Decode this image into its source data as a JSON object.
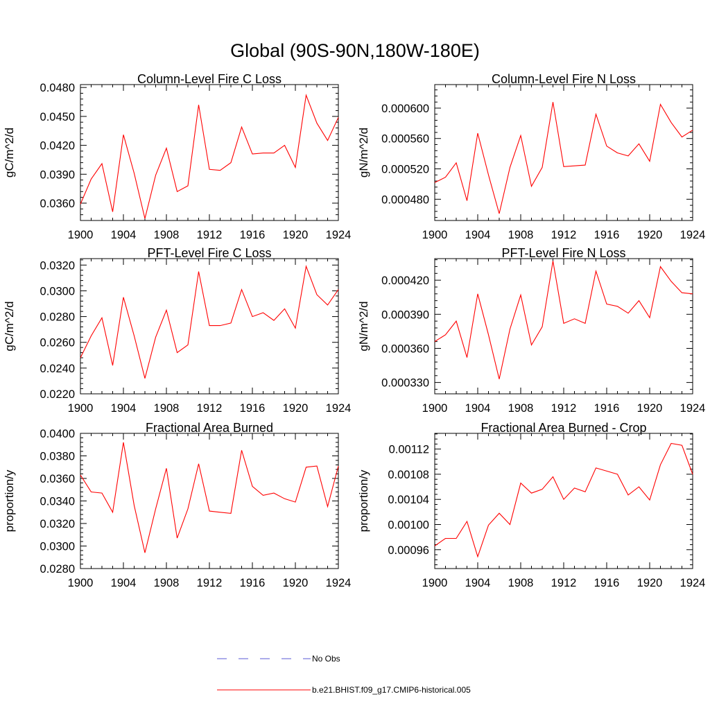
{
  "title": "Global (90S-90N,180W-180E)",
  "legend": {
    "placement": "bottom-center",
    "entries": [
      {
        "label": "No Obs",
        "color": "#5a5ad6",
        "style": "dashed"
      },
      {
        "label": "b.e21.BHIST.f09_g17.CMIP6-historical.005",
        "color": "#ff0000",
        "style": "solid"
      }
    ]
  },
  "chart_data": [
    {
      "type": "line",
      "title": "Column-Level Fire C Loss",
      "ylabel": "gC/m^2/d",
      "xlim": [
        1900,
        1924
      ],
      "xticks": [
        1900,
        1904,
        1908,
        1912,
        1916,
        1920,
        1924
      ],
      "xtick_labels": [
        "1900",
        "1904",
        "1908",
        "1912",
        "1916",
        "1920",
        "1924"
      ],
      "ylim": [
        0.0342,
        0.0483
      ],
      "yticks": [
        0.036,
        0.039,
        0.042,
        0.045,
        0.048
      ],
      "ytick_labels": [
        "0.0360",
        "0.0390",
        "0.0420",
        "0.0450",
        "0.0480"
      ],
      "grid": false,
      "series": [
        {
          "name": "b.e21.BHIST.f09_g17.CMIP6-historical.005",
          "color": "#ff0000",
          "x": [
            1900,
            1901,
            1902,
            1903,
            1904,
            1905,
            1906,
            1907,
            1908,
            1909,
            1910,
            1911,
            1912,
            1913,
            1914,
            1915,
            1916,
            1917,
            1918,
            1919,
            1920,
            1921,
            1922,
            1923,
            1924
          ],
          "values": [
            0.0359,
            0.0385,
            0.0401,
            0.0351,
            0.0431,
            0.0391,
            0.0344,
            0.0389,
            0.0417,
            0.0372,
            0.0378,
            0.0462,
            0.0395,
            0.0394,
            0.0402,
            0.0439,
            0.0411,
            0.0412,
            0.0412,
            0.042,
            0.0397,
            0.0472,
            0.0443,
            0.0425,
            0.0449
          ]
        }
      ]
    },
    {
      "type": "line",
      "title": "Column-Level Fire N Loss",
      "ylabel": "gN/m^2/d",
      "xlim": [
        1900,
        1924
      ],
      "xticks": [
        1900,
        1904,
        1908,
        1912,
        1916,
        1920,
        1924
      ],
      "xtick_labels": [
        "1900",
        "1904",
        "1908",
        "1912",
        "1916",
        "1920",
        "1924"
      ],
      "ylim": [
        0.000452,
        0.000631
      ],
      "yticks": [
        0.00048,
        0.00052,
        0.00056,
        0.0006
      ],
      "ytick_labels": [
        "0.000480",
        "0.000520",
        "0.000560",
        "0.000600"
      ],
      "grid": false,
      "series": [
        {
          "name": "b.e21.BHIST.f09_g17.CMIP6-historical.005",
          "color": "#ff0000",
          "x": [
            1900,
            1901,
            1902,
            1903,
            1904,
            1905,
            1906,
            1907,
            1908,
            1909,
            1910,
            1911,
            1912,
            1913,
            1914,
            1915,
            1916,
            1917,
            1918,
            1919,
            1920,
            1921,
            1922,
            1923,
            1924
          ],
          "values": [
            0.000502,
            0.000509,
            0.000528,
            0.000478,
            0.000567,
            0.000512,
            0.000461,
            0.000522,
            0.000564,
            0.000497,
            0.000522,
            0.000608,
            0.000523,
            0.000524,
            0.000525,
            0.000592,
            0.00055,
            0.000541,
            0.000537,
            0.000553,
            0.00053,
            0.000605,
            0.000581,
            0.000562,
            0.000571
          ]
        }
      ]
    },
    {
      "type": "line",
      "title": "PFT-Level Fire C Loss",
      "ylabel": "gC/m^2/d",
      "xlim": [
        1900,
        1924
      ],
      "xticks": [
        1900,
        1904,
        1908,
        1912,
        1916,
        1920,
        1924
      ],
      "xtick_labels": [
        "1900",
        "1904",
        "1908",
        "1912",
        "1916",
        "1920",
        "1924"
      ],
      "ylim": [
        0.022,
        0.0325
      ],
      "yticks": [
        0.022,
        0.024,
        0.026,
        0.028,
        0.03,
        0.032
      ],
      "ytick_labels": [
        "0.0220",
        "0.0240",
        "0.0260",
        "0.0280",
        "0.0300",
        "0.0320"
      ],
      "grid": false,
      "series": [
        {
          "name": "b.e21.BHIST.f09_g17.CMIP6-historical.005",
          "color": "#ff0000",
          "x": [
            1900,
            1901,
            1902,
            1903,
            1904,
            1905,
            1906,
            1907,
            1908,
            1909,
            1910,
            1911,
            1912,
            1913,
            1914,
            1915,
            1916,
            1917,
            1918,
            1919,
            1920,
            1921,
            1922,
            1923,
            1924
          ],
          "values": [
            0.0248,
            0.0265,
            0.0279,
            0.0242,
            0.0295,
            0.0265,
            0.0232,
            0.0264,
            0.0285,
            0.0252,
            0.0258,
            0.0315,
            0.0273,
            0.0273,
            0.0275,
            0.0301,
            0.028,
            0.0283,
            0.0277,
            0.0286,
            0.0271,
            0.0319,
            0.0297,
            0.0289,
            0.0301
          ]
        }
      ]
    },
    {
      "type": "line",
      "title": "PFT-Level Fire N Loss",
      "ylabel": "gN/m^2/d",
      "xlim": [
        1900,
        1924
      ],
      "xticks": [
        1900,
        1904,
        1908,
        1912,
        1916,
        1920,
        1924
      ],
      "xtick_labels": [
        "1900",
        "1904",
        "1908",
        "1912",
        "1916",
        "1920",
        "1924"
      ],
      "ylim": [
        0.00032,
        0.000439
      ],
      "yticks": [
        0.00033,
        0.00036,
        0.00039,
        0.00042
      ],
      "ytick_labels": [
        "0.000330",
        "0.000360",
        "0.000390",
        "0.000420"
      ],
      "grid": false,
      "series": [
        {
          "name": "b.e21.BHIST.f09_g17.CMIP6-historical.005",
          "color": "#ff0000",
          "x": [
            1900,
            1901,
            1902,
            1903,
            1904,
            1905,
            1906,
            1907,
            1908,
            1909,
            1910,
            1911,
            1912,
            1913,
            1914,
            1915,
            1916,
            1917,
            1918,
            1919,
            1920,
            1921,
            1922,
            1923,
            1924
          ],
          "values": [
            0.000366,
            0.000372,
            0.000384,
            0.000352,
            0.000408,
            0.000372,
            0.000333,
            0.000377,
            0.000407,
            0.000363,
            0.000379,
            0.000437,
            0.000382,
            0.000386,
            0.000382,
            0.000428,
            0.000399,
            0.000397,
            0.000391,
            0.000402,
            0.000387,
            0.000432,
            0.000419,
            0.000409,
            0.000408
          ]
        }
      ]
    },
    {
      "type": "line",
      "title": "Fractional Area Burned",
      "ylabel": "proportion/y",
      "xlim": [
        1900,
        1924
      ],
      "xticks": [
        1900,
        1904,
        1908,
        1912,
        1916,
        1920,
        1924
      ],
      "xtick_labels": [
        "1900",
        "1904",
        "1908",
        "1912",
        "1916",
        "1920",
        "1924"
      ],
      "ylim": [
        0.028,
        0.04
      ],
      "yticks": [
        0.028,
        0.03,
        0.032,
        0.034,
        0.036,
        0.038,
        0.04
      ],
      "ytick_labels": [
        "0.0280",
        "0.0300",
        "0.0320",
        "0.0340",
        "0.0360",
        "0.0380",
        "0.0400"
      ],
      "grid": false,
      "series": [
        {
          "name": "b.e21.BHIST.f09_g17.CMIP6-historical.005",
          "color": "#ff0000",
          "x": [
            1900,
            1901,
            1902,
            1903,
            1904,
            1905,
            1906,
            1907,
            1908,
            1909,
            1910,
            1911,
            1912,
            1913,
            1914,
            1915,
            1916,
            1917,
            1918,
            1919,
            1920,
            1921,
            1922,
            1923,
            1924
          ],
          "values": [
            0.0363,
            0.0348,
            0.0347,
            0.033,
            0.0392,
            0.0336,
            0.0294,
            0.0333,
            0.0369,
            0.0307,
            0.0333,
            0.0373,
            0.0331,
            0.033,
            0.0329,
            0.0385,
            0.0353,
            0.0345,
            0.0347,
            0.0342,
            0.0339,
            0.037,
            0.0371,
            0.0335,
            0.0371
          ]
        }
      ]
    },
    {
      "type": "line",
      "title": "Fractional Area Burned - Crop",
      "ylabel": "proportion/y",
      "xlim": [
        1900,
        1924
      ],
      "xticks": [
        1900,
        1904,
        1908,
        1912,
        1916,
        1920,
        1924
      ],
      "xtick_labels": [
        "1900",
        "1904",
        "1908",
        "1912",
        "1916",
        "1920",
        "1924"
      ],
      "ylim": [
        0.00093,
        0.001145
      ],
      "yticks": [
        0.00096,
        0.001,
        0.00104,
        0.00108,
        0.00112
      ],
      "ytick_labels": [
        "0.00096",
        "0.00100",
        "0.00104",
        "0.00108",
        "0.00112"
      ],
      "grid": false,
      "series": [
        {
          "name": "b.e21.BHIST.f09_g17.CMIP6-historical.005",
          "color": "#ff0000",
          "x": [
            1900,
            1901,
            1902,
            1903,
            1904,
            1905,
            1906,
            1907,
            1908,
            1909,
            1910,
            1911,
            1912,
            1913,
            1914,
            1915,
            1916,
            1917,
            1918,
            1919,
            1920,
            1921,
            1922,
            1923,
            1924
          ],
          "values": [
            0.000966,
            0.000978,
            0.000978,
            0.001005,
            0.000949,
            0.000999,
            0.001018,
            0.001,
            0.001066,
            0.00105,
            0.001056,
            0.001076,
            0.00104,
            0.001058,
            0.001052,
            0.00109,
            0.001085,
            0.00108,
            0.001047,
            0.00106,
            0.001039,
            0.001095,
            0.001129,
            0.001126,
            0.00108
          ]
        }
      ]
    }
  ]
}
